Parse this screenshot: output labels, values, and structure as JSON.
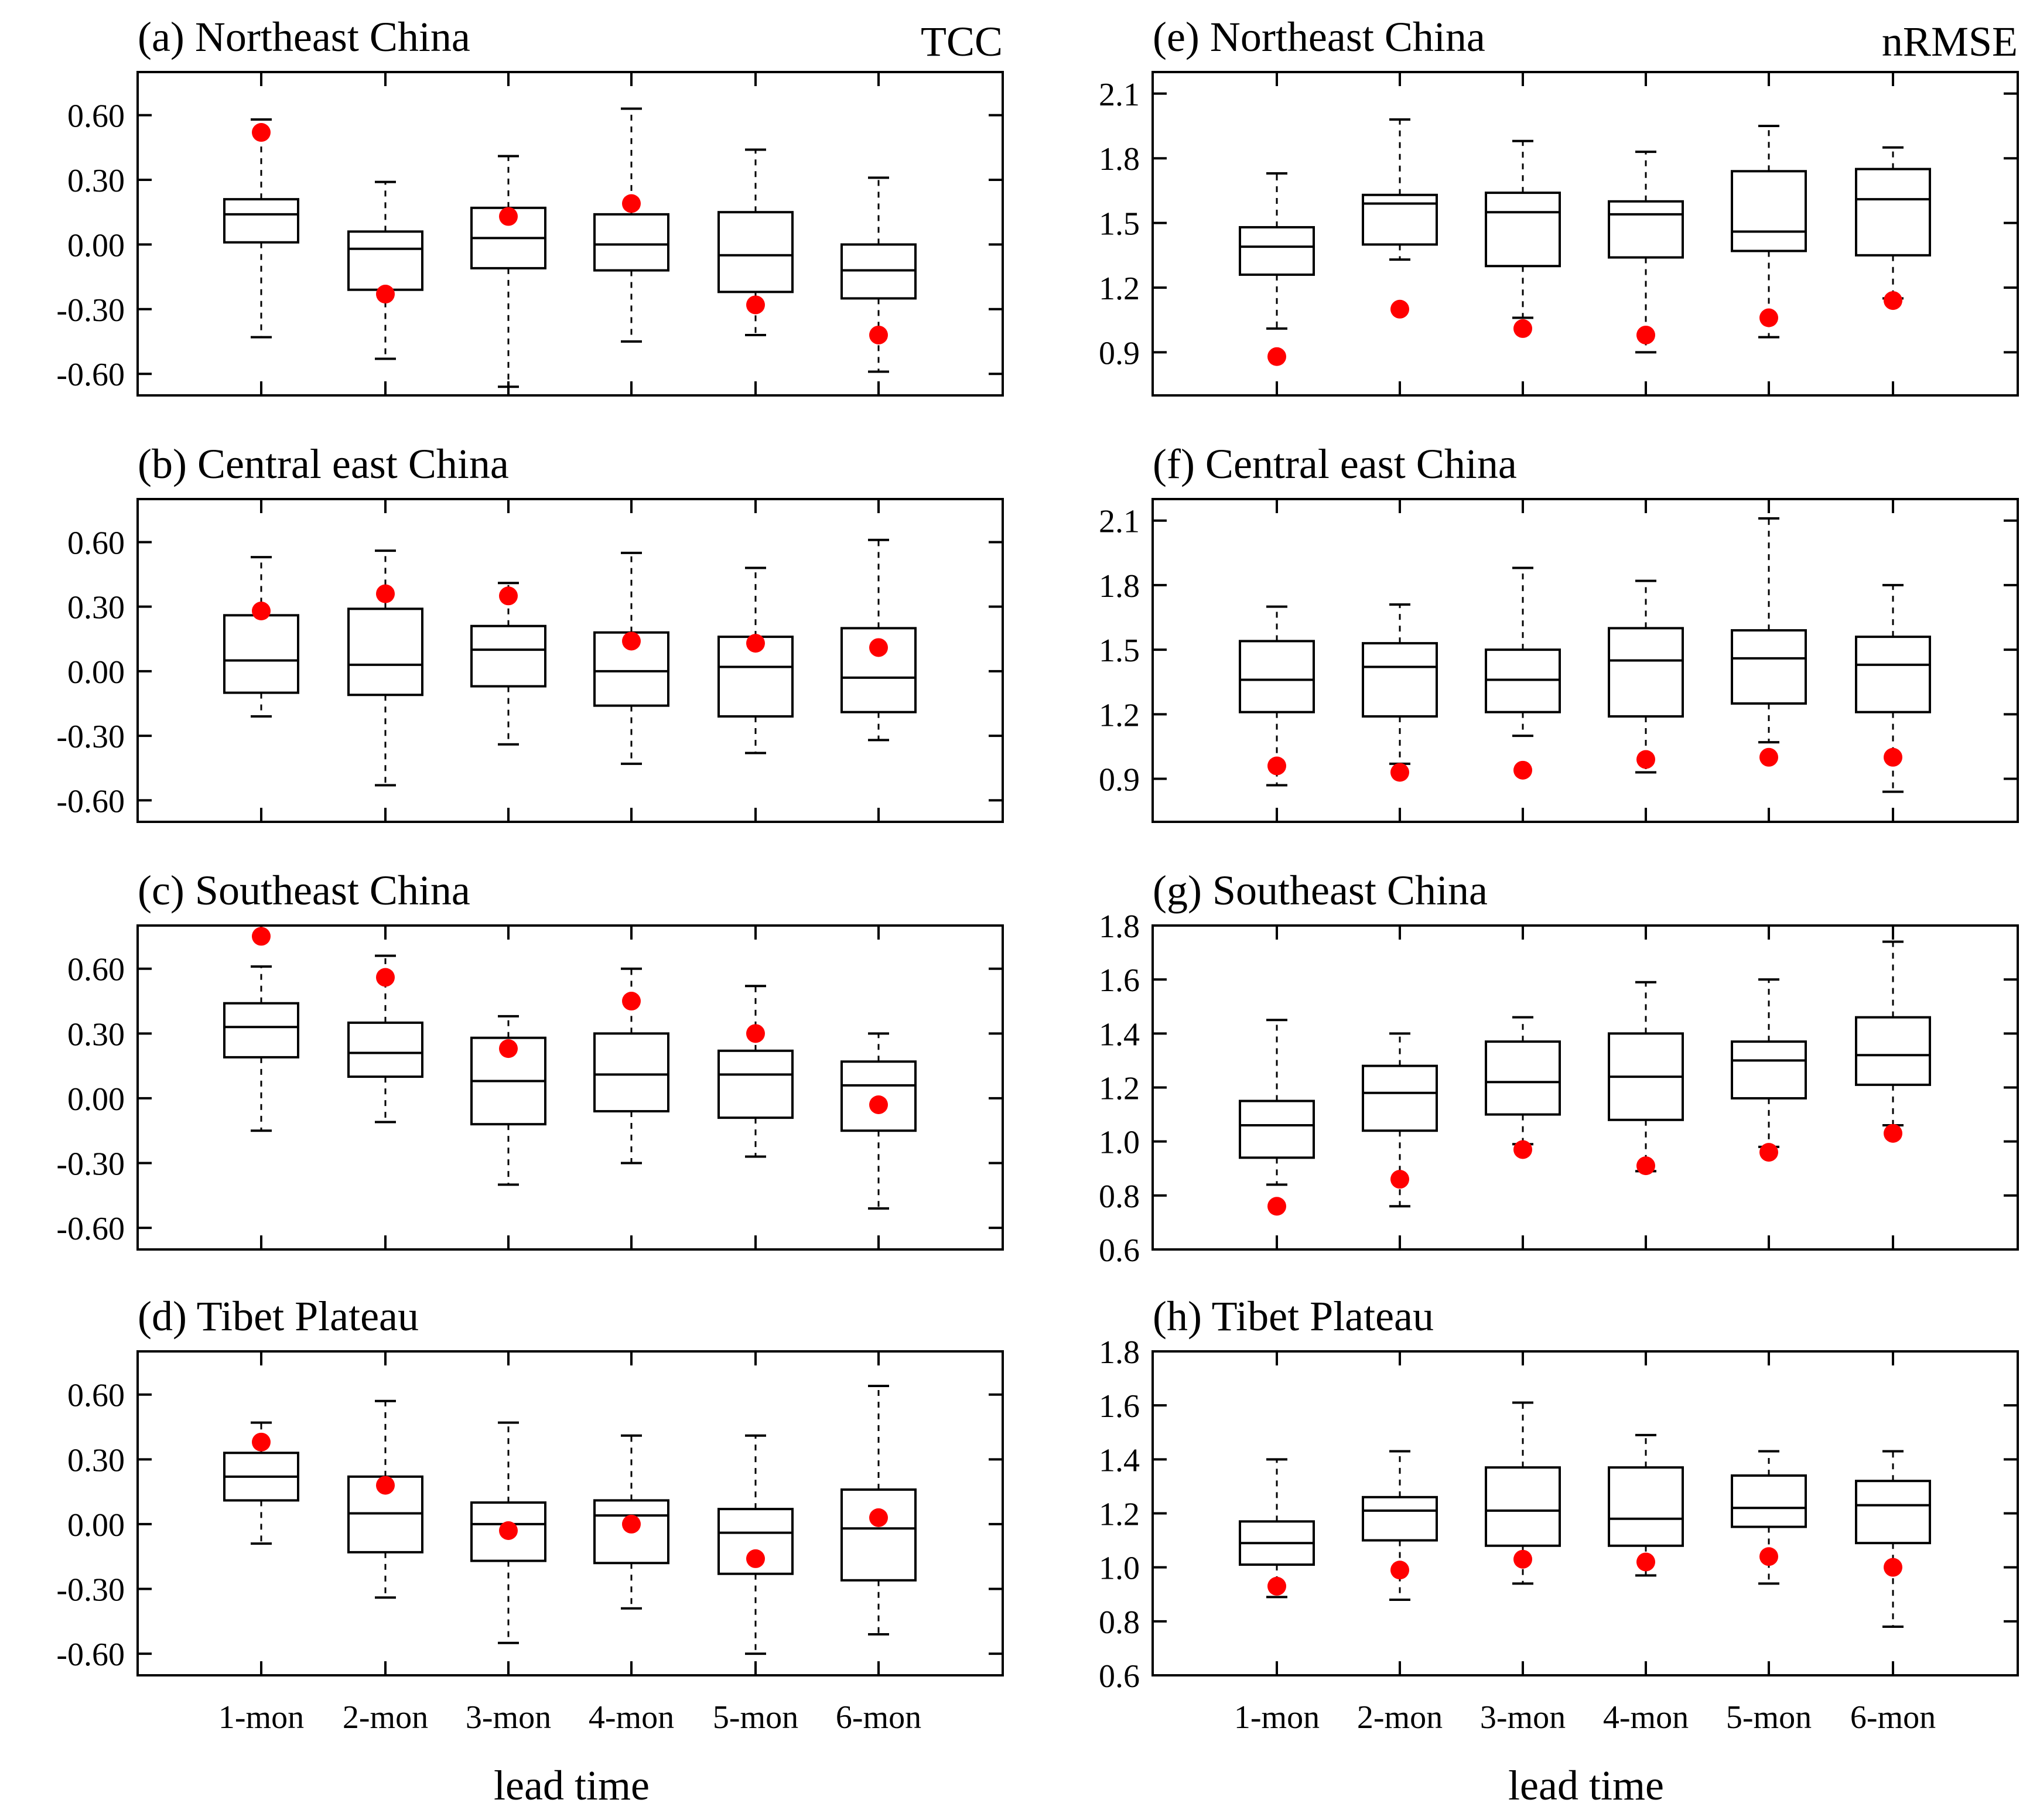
{
  "figure": {
    "categories": [
      "1-mon",
      "2-mon",
      "3-mon",
      "4-mon",
      "5-mon",
      "6-mon"
    ],
    "xlabel_left": "lead time",
    "xlabel_right": "lead time",
    "metric_left": "TCC",
    "metric_right": "nRMSE",
    "marker_color": "#ff0000",
    "box_color": "#000000"
  },
  "chart_data": [
    {
      "type": "box",
      "title": "(a) Northeast China",
      "metric": "TCC",
      "ylim": [
        -0.7,
        0.8
      ],
      "yticks": [
        -0.6,
        -0.3,
        0.0,
        0.3,
        0.6
      ],
      "ytick_labels": [
        "-0.60",
        "-0.30",
        "0.00",
        "0.30",
        "0.60"
      ],
      "categories": [
        "1-mon",
        "2-mon",
        "3-mon",
        "4-mon",
        "5-mon",
        "6-mon"
      ],
      "boxes": [
        {
          "min": -0.43,
          "q1": 0.01,
          "median": 0.14,
          "q3": 0.21,
          "max": 0.58
        },
        {
          "min": -0.53,
          "q1": -0.21,
          "median": -0.02,
          "q3": 0.06,
          "max": 0.29
        },
        {
          "min": -0.66,
          "q1": -0.11,
          "median": 0.03,
          "q3": 0.17,
          "max": 0.41
        },
        {
          "min": -0.45,
          "q1": -0.12,
          "median": 0.0,
          "q3": 0.14,
          "max": 0.63
        },
        {
          "min": -0.42,
          "q1": -0.22,
          "median": -0.05,
          "q3": 0.15,
          "max": 0.44
        },
        {
          "min": -0.59,
          "q1": -0.25,
          "median": -0.12,
          "q3": 0.0,
          "max": 0.31
        }
      ],
      "points": [
        0.52,
        -0.23,
        0.13,
        0.19,
        -0.28,
        -0.42
      ]
    },
    {
      "type": "box",
      "title": "(b) Central east China",
      "metric": "TCC",
      "ylim": [
        -0.7,
        0.8
      ],
      "yticks": [
        -0.6,
        -0.3,
        0.0,
        0.3,
        0.6
      ],
      "ytick_labels": [
        "-0.60",
        "-0.30",
        "0.00",
        "0.30",
        "0.60"
      ],
      "categories": [
        "1-mon",
        "2-mon",
        "3-mon",
        "4-mon",
        "5-mon",
        "6-mon"
      ],
      "boxes": [
        {
          "min": -0.21,
          "q1": -0.1,
          "median": 0.05,
          "q3": 0.26,
          "max": 0.53
        },
        {
          "min": -0.53,
          "q1": -0.11,
          "median": 0.03,
          "q3": 0.29,
          "max": 0.56
        },
        {
          "min": -0.34,
          "q1": -0.07,
          "median": 0.1,
          "q3": 0.21,
          "max": 0.41
        },
        {
          "min": -0.43,
          "q1": -0.16,
          "median": 0.0,
          "q3": 0.18,
          "max": 0.55
        },
        {
          "min": -0.38,
          "q1": -0.21,
          "median": 0.02,
          "q3": 0.16,
          "max": 0.48
        },
        {
          "min": -0.32,
          "q1": -0.19,
          "median": -0.03,
          "q3": 0.2,
          "max": 0.61
        }
      ],
      "points": [
        0.28,
        0.36,
        0.35,
        0.14,
        0.13,
        0.11
      ]
    },
    {
      "type": "box",
      "title": "(c) Southeast China",
      "metric": "TCC",
      "ylim": [
        -0.7,
        0.8
      ],
      "yticks": [
        -0.6,
        -0.3,
        0.0,
        0.3,
        0.6
      ],
      "ytick_labels": [
        "-0.60",
        "-0.30",
        "0.00",
        "0.30",
        "0.60"
      ],
      "categories": [
        "1-mon",
        "2-mon",
        "3-mon",
        "4-mon",
        "5-mon",
        "6-mon"
      ],
      "boxes": [
        {
          "min": -0.15,
          "q1": 0.19,
          "median": 0.33,
          "q3": 0.44,
          "max": 0.61
        },
        {
          "min": -0.11,
          "q1": 0.1,
          "median": 0.21,
          "q3": 0.35,
          "max": 0.66
        },
        {
          "min": -0.4,
          "q1": -0.12,
          "median": 0.08,
          "q3": 0.28,
          "max": 0.38
        },
        {
          "min": -0.3,
          "q1": -0.06,
          "median": 0.11,
          "q3": 0.3,
          "max": 0.6
        },
        {
          "min": -0.27,
          "q1": -0.09,
          "median": 0.11,
          "q3": 0.22,
          "max": 0.52
        },
        {
          "min": -0.51,
          "q1": -0.15,
          "median": 0.06,
          "q3": 0.17,
          "max": 0.3
        }
      ],
      "points": [
        0.75,
        0.56,
        0.23,
        0.45,
        0.3,
        -0.03
      ]
    },
    {
      "type": "box",
      "title": "(d) Tibet Plateau",
      "metric": "TCC",
      "ylim": [
        -0.7,
        0.8
      ],
      "yticks": [
        -0.6,
        -0.3,
        0.0,
        0.3,
        0.6
      ],
      "ytick_labels": [
        "-0.60",
        "-0.30",
        "0.00",
        "0.30",
        "0.60"
      ],
      "categories": [
        "1-mon",
        "2-mon",
        "3-mon",
        "4-mon",
        "5-mon",
        "6-mon"
      ],
      "boxes": [
        {
          "min": -0.09,
          "q1": 0.11,
          "median": 0.22,
          "q3": 0.33,
          "max": 0.47
        },
        {
          "min": -0.34,
          "q1": -0.13,
          "median": 0.05,
          "q3": 0.22,
          "max": 0.57
        },
        {
          "min": -0.55,
          "q1": -0.17,
          "median": 0.0,
          "q3": 0.1,
          "max": 0.47
        },
        {
          "min": -0.39,
          "q1": -0.18,
          "median": 0.04,
          "q3": 0.11,
          "max": 0.41
        },
        {
          "min": -0.6,
          "q1": -0.23,
          "median": -0.04,
          "q3": 0.07,
          "max": 0.41
        },
        {
          "min": -0.51,
          "q1": -0.26,
          "median": -0.02,
          "q3": 0.16,
          "max": 0.64
        }
      ],
      "points": [
        0.38,
        0.18,
        -0.03,
        0.0,
        -0.16,
        0.03
      ]
    },
    {
      "type": "box",
      "title": "(e) Northeast China",
      "metric": "nRMSE",
      "ylim": [
        0.7,
        2.2
      ],
      "yticks": [
        0.9,
        1.2,
        1.5,
        1.8,
        2.1
      ],
      "ytick_labels": [
        "0.9",
        "1.2",
        "1.5",
        "1.8",
        "2.1"
      ],
      "categories": [
        "1-mon",
        "2-mon",
        "3-mon",
        "4-mon",
        "5-mon",
        "6-mon"
      ],
      "boxes": [
        {
          "min": 1.01,
          "q1": 1.26,
          "median": 1.39,
          "q3": 1.48,
          "max": 1.73
        },
        {
          "min": 1.33,
          "q1": 1.4,
          "median": 1.59,
          "q3": 1.63,
          "max": 1.98
        },
        {
          "min": 1.06,
          "q1": 1.3,
          "median": 1.55,
          "q3": 1.64,
          "max": 1.88
        },
        {
          "min": 0.9,
          "q1": 1.34,
          "median": 1.54,
          "q3": 1.6,
          "max": 1.83
        },
        {
          "min": 0.97,
          "q1": 1.37,
          "median": 1.46,
          "q3": 1.74,
          "max": 1.95
        },
        {
          "min": 1.15,
          "q1": 1.35,
          "median": 1.61,
          "q3": 1.75,
          "max": 1.85
        }
      ],
      "points": [
        0.88,
        1.1,
        1.01,
        0.98,
        1.06,
        1.14
      ]
    },
    {
      "type": "box",
      "title": "(f) Central east China",
      "metric": "nRMSE",
      "ylim": [
        0.7,
        2.2
      ],
      "yticks": [
        0.9,
        1.2,
        1.5,
        1.8,
        2.1
      ],
      "ytick_labels": [
        "0.9",
        "1.2",
        "1.5",
        "1.8",
        "2.1"
      ],
      "categories": [
        "1-mon",
        "2-mon",
        "3-mon",
        "4-mon",
        "5-mon",
        "6-mon"
      ],
      "boxes": [
        {
          "min": 0.87,
          "q1": 1.21,
          "median": 1.36,
          "q3": 1.54,
          "max": 1.7
        },
        {
          "min": 0.97,
          "q1": 1.19,
          "median": 1.42,
          "q3": 1.53,
          "max": 1.71
        },
        {
          "min": 1.1,
          "q1": 1.21,
          "median": 1.36,
          "q3": 1.5,
          "max": 1.88
        },
        {
          "min": 0.93,
          "q1": 1.19,
          "median": 1.45,
          "q3": 1.6,
          "max": 1.82
        },
        {
          "min": 1.07,
          "q1": 1.25,
          "median": 1.46,
          "q3": 1.59,
          "max": 2.11
        },
        {
          "min": 0.84,
          "q1": 1.21,
          "median": 1.43,
          "q3": 1.56,
          "max": 1.8
        }
      ],
      "points": [
        0.96,
        0.93,
        0.94,
        0.99,
        1.0,
        1.0
      ]
    },
    {
      "type": "box",
      "title": "(g) Southeast China",
      "metric": "nRMSE",
      "ylim": [
        0.6,
        1.8
      ],
      "yticks": [
        0.6,
        0.8,
        1.0,
        1.2,
        1.4,
        1.6,
        1.8
      ],
      "ytick_labels": [
        "0.6",
        "0.8",
        "1.0",
        "1.2",
        "1.4",
        "1.6",
        "1.8"
      ],
      "categories": [
        "1-mon",
        "2-mon",
        "3-mon",
        "4-mon",
        "5-mon",
        "6-mon"
      ],
      "boxes": [
        {
          "min": 0.84,
          "q1": 0.94,
          "median": 1.06,
          "q3": 1.15,
          "max": 1.45
        },
        {
          "min": 0.76,
          "q1": 1.04,
          "median": 1.18,
          "q3": 1.28,
          "max": 1.4
        },
        {
          "min": 0.99,
          "q1": 1.1,
          "median": 1.22,
          "q3": 1.37,
          "max": 1.46
        },
        {
          "min": 0.89,
          "q1": 1.08,
          "median": 1.24,
          "q3": 1.4,
          "max": 1.59
        },
        {
          "min": 0.98,
          "q1": 1.16,
          "median": 1.3,
          "q3": 1.37,
          "max": 1.6
        },
        {
          "min": 1.06,
          "q1": 1.21,
          "median": 1.32,
          "q3": 1.46,
          "max": 1.74
        }
      ],
      "points": [
        0.76,
        0.86,
        0.97,
        0.91,
        0.96,
        1.03
      ]
    },
    {
      "type": "box",
      "title": "(h) Tibet Plateau",
      "metric": "nRMSE",
      "ylim": [
        0.6,
        1.8
      ],
      "yticks": [
        0.6,
        0.8,
        1.0,
        1.2,
        1.4,
        1.6,
        1.8
      ],
      "ytick_labels": [
        "0.6",
        "0.8",
        "1.0",
        "1.2",
        "1.4",
        "1.6",
        "1.8"
      ],
      "categories": [
        "1-mon",
        "2-mon",
        "3-mon",
        "4-mon",
        "5-mon",
        "6-mon"
      ],
      "boxes": [
        {
          "min": 0.89,
          "q1": 1.01,
          "median": 1.09,
          "q3": 1.17,
          "max": 1.4
        },
        {
          "min": 0.88,
          "q1": 1.1,
          "median": 1.21,
          "q3": 1.26,
          "max": 1.43
        },
        {
          "min": 0.94,
          "q1": 1.08,
          "median": 1.21,
          "q3": 1.37,
          "max": 1.61
        },
        {
          "min": 0.97,
          "q1": 1.08,
          "median": 1.18,
          "q3": 1.37,
          "max": 1.49
        },
        {
          "min": 0.94,
          "q1": 1.15,
          "median": 1.22,
          "q3": 1.34,
          "max": 1.43
        },
        {
          "min": 0.78,
          "q1": 1.09,
          "median": 1.23,
          "q3": 1.32,
          "max": 1.43
        }
      ],
      "points": [
        0.93,
        0.99,
        1.03,
        1.02,
        1.04,
        1.0
      ]
    }
  ]
}
